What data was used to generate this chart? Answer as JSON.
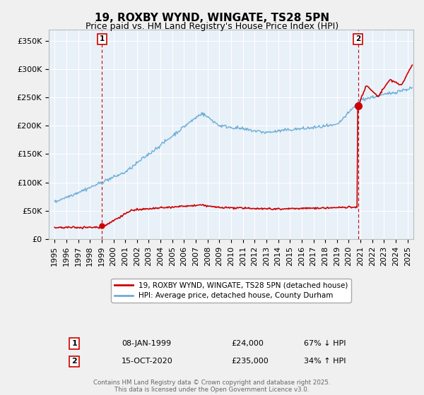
{
  "title": "19, ROXBY WYND, WINGATE, TS28 5PN",
  "subtitle": "Price paid vs. HM Land Registry's House Price Index (HPI)",
  "footnote": "Contains HM Land Registry data © Crown copyright and database right 2025.\nThis data is licensed under the Open Government Licence v3.0.",
  "legend_red": "19, ROXBY WYND, WINGATE, TS28 5PN (detached house)",
  "legend_blue": "HPI: Average price, detached house, County Durham",
  "annotation1_label": "1",
  "annotation1_date": "08-JAN-1999",
  "annotation1_price": "£24,000",
  "annotation1_hpi": "67% ↓ HPI",
  "annotation2_label": "2",
  "annotation2_date": "15-OCT-2020",
  "annotation2_price": "£235,000",
  "annotation2_hpi": "34% ↑ HPI",
  "sale1_x": 1999.03,
  "sale1_y": 24000,
  "sale2_x": 2020.79,
  "sale2_y": 235000,
  "vline1_x": 1999.03,
  "vline2_x": 2020.79,
  "ylim_max": 370000,
  "xlim_min": 1994.5,
  "xlim_max": 2025.5,
  "yticks": [
    0,
    50000,
    100000,
    150000,
    200000,
    250000,
    300000,
    350000
  ],
  "ytick_labels": [
    "£0",
    "£50K",
    "£100K",
    "£150K",
    "£200K",
    "£250K",
    "£300K",
    "£350K"
  ],
  "xtick_years": [
    1995,
    1996,
    1997,
    1998,
    1999,
    2000,
    2001,
    2002,
    2003,
    2004,
    2005,
    2006,
    2007,
    2008,
    2009,
    2010,
    2011,
    2012,
    2013,
    2014,
    2015,
    2016,
    2017,
    2018,
    2019,
    2020,
    2021,
    2022,
    2023,
    2024,
    2025
  ],
  "hpi_color": "#6baed6",
  "sale_color": "#cc0000",
  "vline_color": "#cc0000",
  "background_color": "#f0f0f0",
  "plot_bg_color": "#e8f0f8",
  "grid_color": "#ffffff",
  "title_fontsize": 11,
  "subtitle_fontsize": 9,
  "axis_fontsize": 8,
  "annotation_fontsize": 8
}
